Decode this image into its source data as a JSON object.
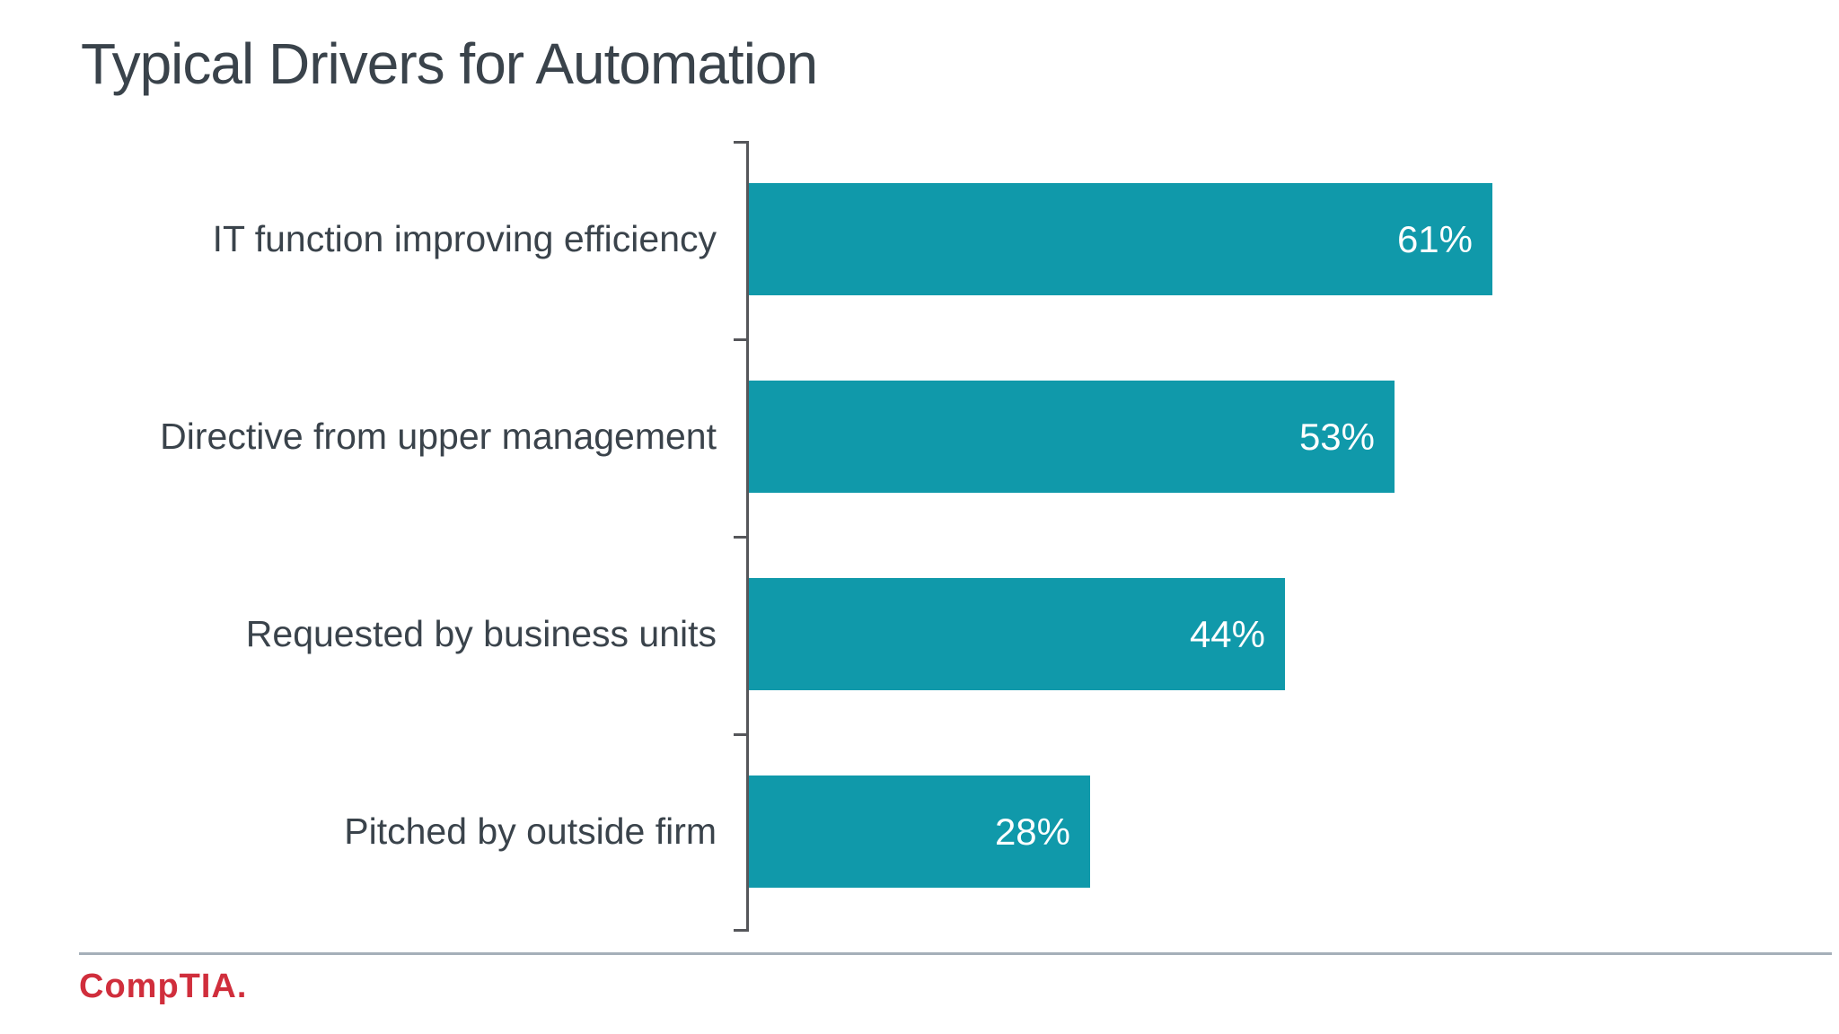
{
  "title": "Typical Drivers for Automation",
  "footer": {
    "logo_text": "CompTIA.",
    "logo_color": "#D02E3C"
  },
  "chart_data": {
    "type": "bar",
    "orientation": "horizontal",
    "title": "Typical Drivers for Automation",
    "categories": [
      "IT function improving efficiency",
      "Directive from upper management",
      "Requested by business units",
      "Pitched by outside firm"
    ],
    "values": [
      61,
      53,
      44,
      28
    ],
    "value_labels": [
      "61%",
      "53%",
      "44%",
      "28%"
    ],
    "xlabel": "",
    "ylabel": "",
    "xlim": [
      0,
      90
    ],
    "grid": false,
    "legend": false,
    "bar_color": "#1099AA",
    "label_color": "#3A434B",
    "value_label_color": "#FFFFFF",
    "axis_color": "#55565A",
    "divider_color": "#A5AFB9"
  }
}
